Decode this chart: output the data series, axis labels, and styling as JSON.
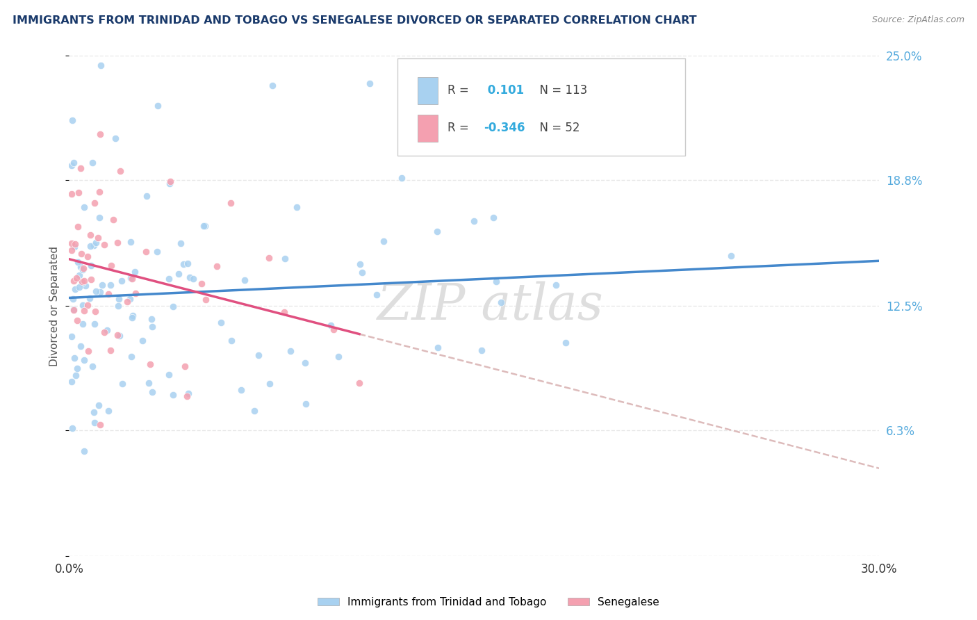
{
  "title": "IMMIGRANTS FROM TRINIDAD AND TOBAGO VS SENEGALESE DIVORCED OR SEPARATED CORRELATION CHART",
  "source_text": "Source: ZipAtlas.com",
  "ylabel": "Divorced or Separated",
  "legend_label1": "Immigrants from Trinidad and Tobago",
  "legend_label2": "Senegalese",
  "R1": 0.101,
  "N1": 113,
  "R2": -0.346,
  "N2": 52,
  "color1": "#a8d1f0",
  "color2": "#f4a0b0",
  "line_color1": "#4488cc",
  "line_color2": "#e05080",
  "dashed_line_color": "#ddbbbb",
  "xlim": [
    0.0,
    0.3
  ],
  "ylim": [
    0.0,
    0.25
  ],
  "watermark": "ZIPatlas",
  "title_color": "#1a3a6b",
  "source_color": "#888888",
  "grid_color": "#e8e8e8",
  "ytick_color": "#55aadd",
  "xtick_color": "#333333"
}
